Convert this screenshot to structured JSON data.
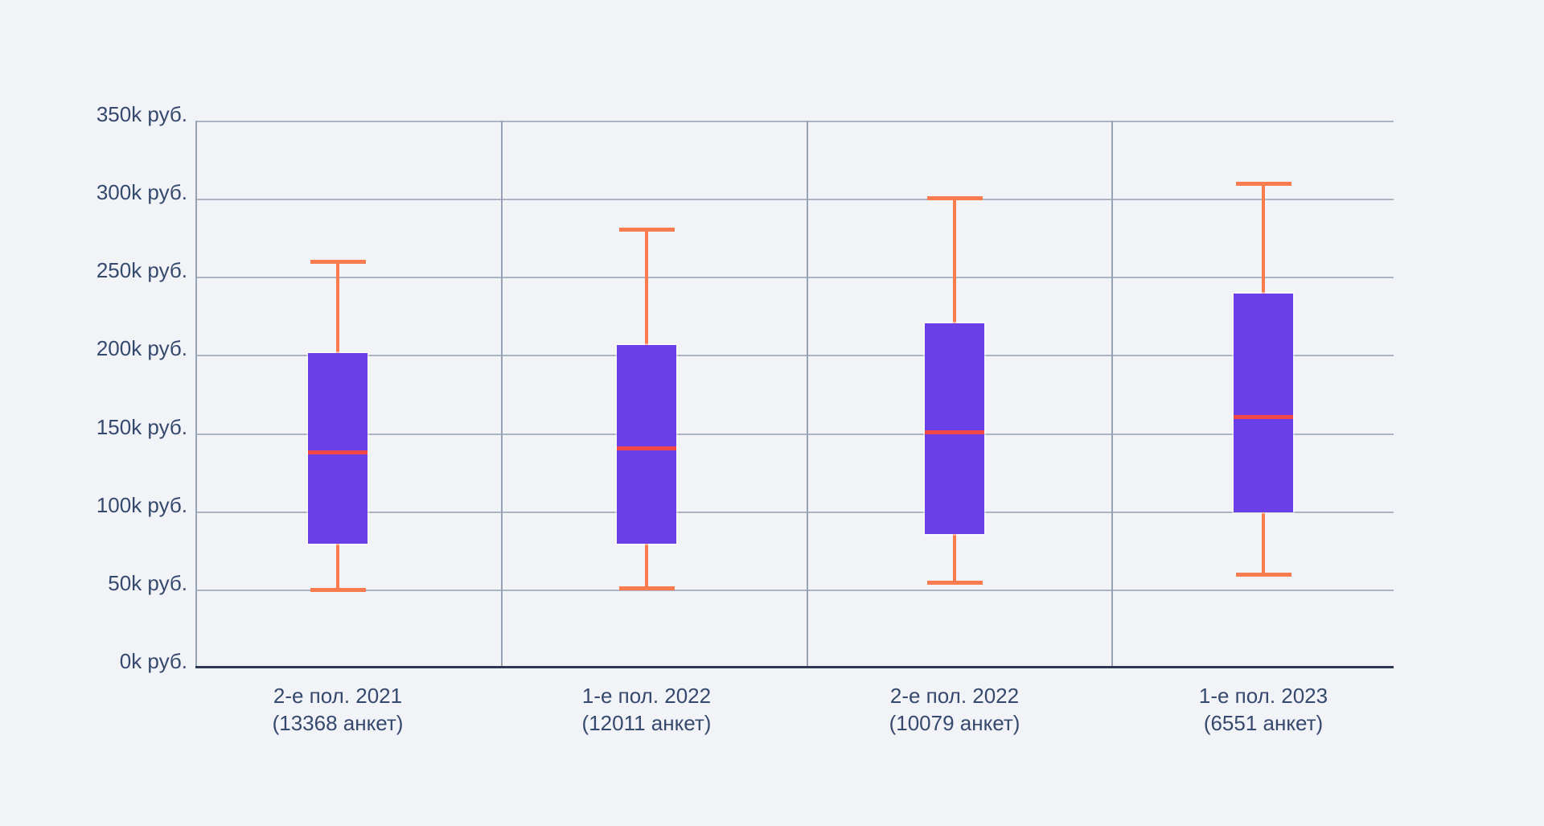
{
  "page": {
    "background": "#F2F3F6"
  },
  "chart_data": {
    "type": "boxplot",
    "title": "",
    "xlabel": "",
    "ylabel": "",
    "unit": "k руб.",
    "ylim": [
      0,
      350
    ],
    "y_tick_step": 50,
    "grid": true,
    "legend": false,
    "y_tick_labels": [
      "0k руб.",
      "50k руб.",
      "100k руб.",
      "150k руб.",
      "200k руб.",
      "250k руб.",
      "300k руб.",
      "350k руб."
    ],
    "categories": [
      "2-е пол. 2021",
      "1-е пол. 2022",
      "2-е пол. 2022",
      "1-е пол. 2023"
    ],
    "category_sublabels": [
      "(13368 анкет)",
      "(12011 анкет)",
      "(10079 анкет)",
      "(6551 анкет)"
    ],
    "boxes": [
      {
        "min": 50,
        "q1": 80,
        "median": 138,
        "q3": 202,
        "max": 260
      },
      {
        "min": 51,
        "q1": 80,
        "median": 141,
        "q3": 207,
        "max": 281
      },
      {
        "min": 55,
        "q1": 86,
        "median": 151,
        "q3": 221,
        "max": 301
      },
      {
        "min": 60,
        "q1": 100,
        "median": 161,
        "q3": 240,
        "max": 310
      }
    ],
    "colors": {
      "box_fill": "#6B3FE8",
      "whisker": "#FA7B4D",
      "median": "#F14747",
      "gridline": "#ABB4C2",
      "panel_divider": "#97A2B5",
      "bottom_axis": "#2C3852",
      "label_text": "#35496E",
      "background": "#F2F3F6"
    }
  }
}
